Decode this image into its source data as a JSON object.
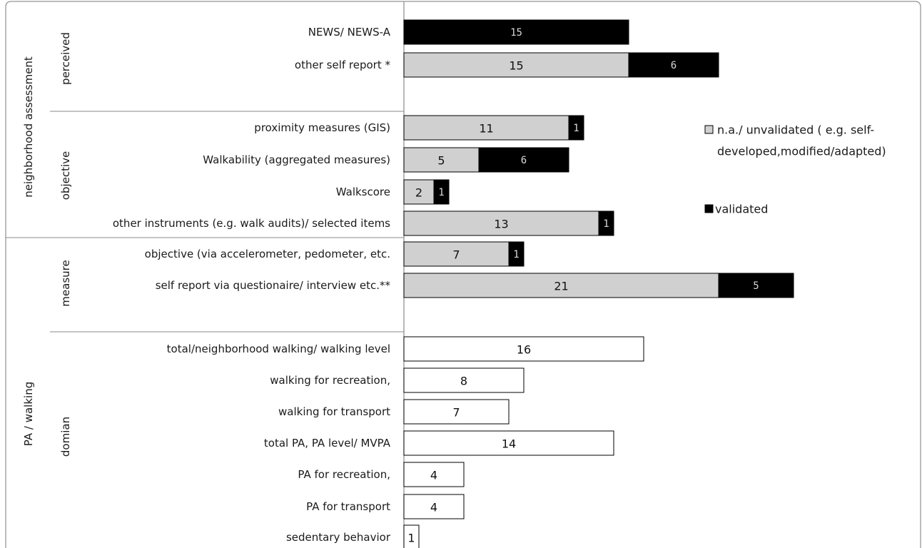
{
  "chart_data": {
    "type": "bar",
    "orientation": "horizontal",
    "stacked": true,
    "groups": [
      {
        "label": "neighborhood assessment",
        "subgroups": [
          {
            "label": "perceived",
            "categories": [
              "NEWS/ NEWS-A",
              "other self report *"
            ]
          },
          {
            "label": "objective",
            "categories": [
              "proximity measures (GIS)",
              "Walkability (aggregated measures)",
              "Walkscore",
              "other instruments (e.g. walk audits)/ selected items"
            ]
          }
        ]
      },
      {
        "label": "PA / walking",
        "subgroups": [
          {
            "label": "measure",
            "categories": [
              "objective (via accelerometer, pedometer, etc.",
              "self report via questionaire/ interview etc.**"
            ]
          },
          {
            "label": "domian",
            "categories": [
              "total/neighborhood walking/ walking level",
              "walking for recreation,",
              "walking for transport",
              "total PA, PA level/ MVPA",
              "PA for recreation,",
              "PA for transport",
              "sedentary behavior"
            ]
          }
        ]
      }
    ],
    "categories": [
      "NEWS/ NEWS-A",
      "other self report *",
      "proximity measures (GIS)",
      "Walkability (aggregated measures)",
      "Walkscore",
      "other instruments (e.g. walk audits)/ selected items",
      "objective (via accelerometer, pedometer, etc.",
      "self report via questionaire/ interview etc.**",
      "total/neighborhood walking/ walking level",
      "walking for recreation,",
      "walking for transport",
      "total PA, PA level/ MVPA",
      "PA for recreation,",
      "PA for transport",
      "sedentary behavior"
    ],
    "series": [
      {
        "name": "n.a./ unvalidated ( e.g. self-developed,modified/adapted)",
        "color": "#d0d0d0",
        "values": [
          0,
          15,
          11,
          5,
          2,
          13,
          7,
          21,
          null,
          null,
          null,
          null,
          null,
          null,
          null
        ]
      },
      {
        "name": "validated",
        "color": "#000000",
        "values": [
          15,
          6,
          1,
          6,
          1,
          1,
          1,
          5,
          null,
          null,
          null,
          null,
          null,
          null,
          null
        ]
      },
      {
        "name": "",
        "color": "#ffffff",
        "values": [
          null,
          null,
          null,
          null,
          null,
          null,
          null,
          null,
          16,
          8,
          7,
          14,
          4,
          4,
          1
        ]
      }
    ],
    "legend": {
      "position": "right",
      "unvalidated_line1": "n.a./ unvalidated ( e.g. self-",
      "unvalidated_line2": "developed,modified/adapted)",
      "validated": "validated"
    },
    "xlim": [
      0,
      26
    ],
    "grid": false
  }
}
